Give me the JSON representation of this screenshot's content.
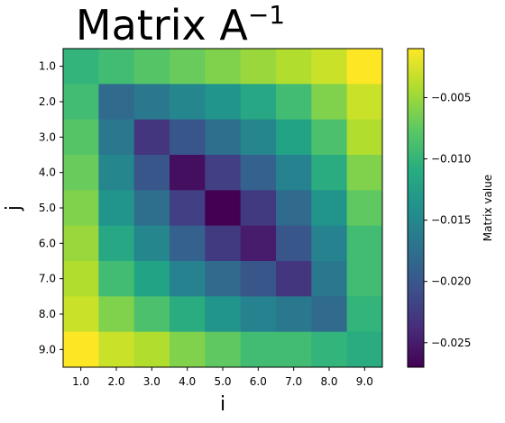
{
  "chart_data": {
    "type": "heatmap",
    "title": "Matrix A",
    "title_superscript": "−1",
    "xlabel": "i",
    "ylabel": "j",
    "x_categories": [
      "1.0",
      "2.0",
      "3.0",
      "4.0",
      "5.0",
      "6.0",
      "7.0",
      "8.0",
      "9.0"
    ],
    "y_categories": [
      "1.0",
      "2.0",
      "3.0",
      "4.0",
      "5.0",
      "6.0",
      "7.0",
      "8.0",
      "9.0"
    ],
    "values": [
      [
        -0.01,
        -0.009,
        -0.008,
        -0.007,
        -0.006,
        -0.005,
        -0.004,
        -0.003,
        -0.001
      ],
      [
        -0.009,
        -0.018,
        -0.0165,
        -0.015,
        -0.0135,
        -0.0115,
        -0.009,
        -0.006,
        -0.003
      ],
      [
        -0.008,
        -0.0165,
        -0.023,
        -0.02,
        -0.0175,
        -0.015,
        -0.012,
        -0.0085,
        -0.004
      ],
      [
        -0.007,
        -0.015,
        -0.02,
        -0.026,
        -0.022,
        -0.019,
        -0.0155,
        -0.011,
        -0.006
      ],
      [
        -0.006,
        -0.0135,
        -0.0175,
        -0.022,
        -0.027,
        -0.0225,
        -0.018,
        -0.0135,
        -0.0075
      ],
      [
        -0.005,
        -0.0115,
        -0.015,
        -0.019,
        -0.0225,
        -0.025,
        -0.02,
        -0.0155,
        -0.009
      ],
      [
        -0.004,
        -0.009,
        -0.012,
        -0.0155,
        -0.018,
        -0.02,
        -0.023,
        -0.0165,
        -0.009
      ],
      [
        -0.003,
        -0.006,
        -0.0085,
        -0.011,
        -0.0135,
        -0.0155,
        -0.0165,
        -0.018,
        -0.01
      ],
      [
        -0.001,
        -0.003,
        -0.004,
        -0.006,
        -0.0075,
        -0.009,
        -0.009,
        -0.01,
        -0.011
      ]
    ],
    "vmin": -0.027,
    "vmax": -0.001,
    "colormap": "viridis",
    "colorbar": {
      "label": "Matrix value",
      "ticks": [
        -0.025,
        -0.02,
        -0.015,
        -0.01,
        -0.005
      ],
      "tick_labels": [
        "−0.025",
        "−0.020",
        "−0.015",
        "−0.010",
        "−0.005"
      ]
    },
    "grid": false
  }
}
